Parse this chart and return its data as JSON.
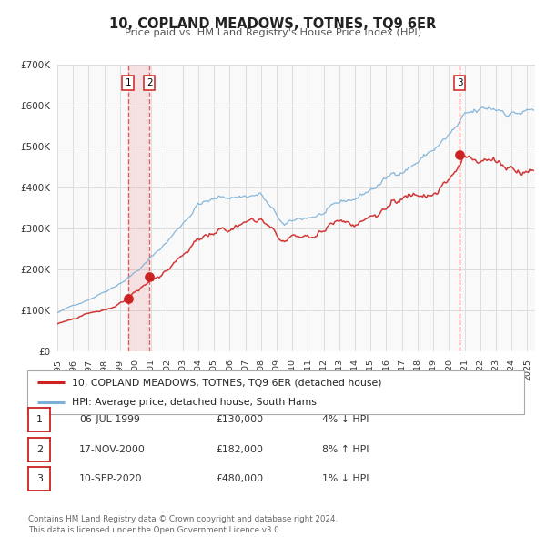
{
  "title": "10, COPLAND MEADOWS, TOTNES, TQ9 6ER",
  "subtitle": "Price paid vs. HM Land Registry's House Price Index (HPI)",
  "ylim": [
    0,
    700000
  ],
  "yticks": [
    0,
    100000,
    200000,
    300000,
    400000,
    500000,
    600000,
    700000
  ],
  "ytick_labels": [
    "£0",
    "£100K",
    "£200K",
    "£300K",
    "£400K",
    "£500K",
    "£600K",
    "£700K"
  ],
  "xlim_start": 1995.0,
  "xlim_end": 2025.5,
  "xticks": [
    1995,
    1996,
    1997,
    1998,
    1999,
    2000,
    2001,
    2002,
    2003,
    2004,
    2005,
    2006,
    2007,
    2008,
    2009,
    2010,
    2011,
    2012,
    2013,
    2014,
    2015,
    2016,
    2017,
    2018,
    2019,
    2020,
    2021,
    2022,
    2023,
    2024,
    2025
  ],
  "sale_dates": [
    1999.51,
    2000.88,
    2020.69
  ],
  "sale_prices": [
    130000,
    182000,
    480000
  ],
  "sale_labels": [
    "1",
    "2",
    "3"
  ],
  "vline_color": "#dd4444",
  "sale_dot_color": "#cc2222",
  "hpi_line_color": "#7ab0d8",
  "price_line_color": "#cc2222",
  "legend_label_price": "10, COPLAND MEADOWS, TOTNES, TQ9 6ER (detached house)",
  "legend_label_hpi": "HPI: Average price, detached house, South Hams",
  "table_rows": [
    {
      "num": "1",
      "date": "06-JUL-1999",
      "price": "£130,000",
      "hpi": "4% ↓ HPI"
    },
    {
      "num": "2",
      "date": "17-NOV-2000",
      "price": "£182,000",
      "hpi": "8% ↑ HPI"
    },
    {
      "num": "3",
      "date": "10-SEP-2020",
      "price": "£480,000",
      "hpi": "1% ↓ HPI"
    }
  ],
  "footnote": "Contains HM Land Registry data © Crown copyright and database right 2024.\nThis data is licensed under the Open Government Licence v3.0.",
  "background_color": "#ffffff",
  "plot_bg_color": "#f9f9f9",
  "grid_color": "#dddddd"
}
